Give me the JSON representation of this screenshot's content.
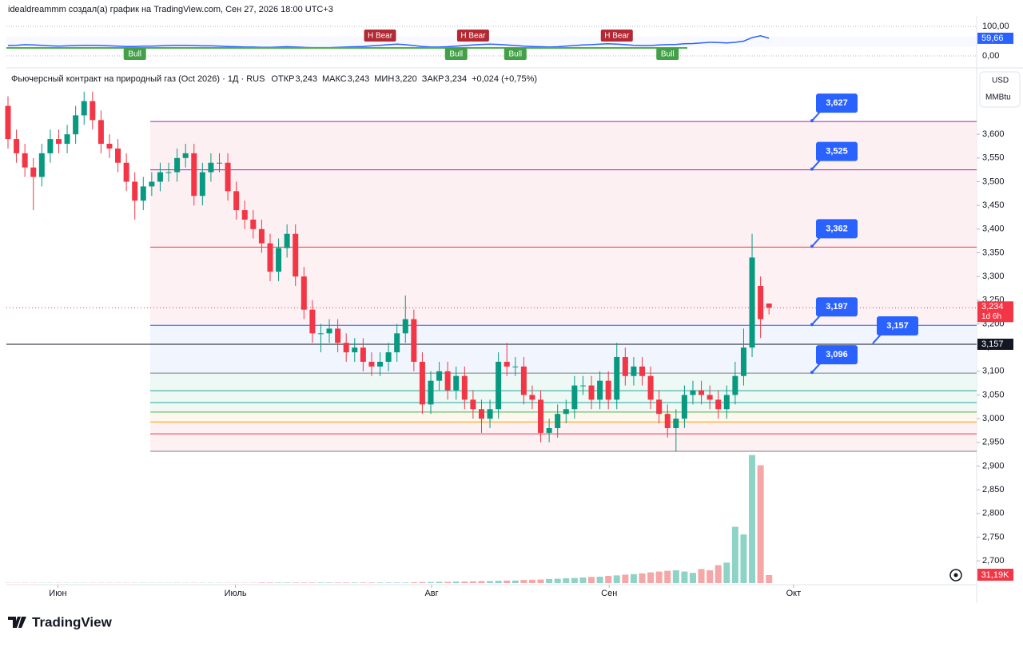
{
  "header": {
    "author": "idealdreammm создал(а) график на TradingView.com, Сен 27, 2026 18:00 UTC+3",
    "logo": "TradingView"
  },
  "chart_data": {
    "type": "candlestick",
    "title": "Фьючерсный контракт на природный газ (Oct 2026) · 1Д · RUS",
    "ohlc_legend": [
      {
        "name": "ОТКР",
        "label": "3,243"
      },
      {
        "name": "МАКС",
        "label": "3,243"
      },
      {
        "name": "МИН",
        "label": "3,220"
      },
      {
        "name": "ЗАКР",
        "label": "3,234"
      }
    ],
    "change": "+0,024 (+0,75%)",
    "units": [
      "USD",
      "MMBtu"
    ],
    "up_color": "#089981",
    "down_color": "#f23645",
    "open": [
      3.66,
      3.59,
      3.56,
      3.53,
      3.51,
      3.56,
      3.59,
      3.58,
      3.6,
      3.64,
      3.67,
      3.63,
      3.58,
      3.57,
      3.54,
      3.5,
      3.46,
      3.49,
      3.5,
      3.52,
      3.52,
      3.55,
      3.56,
      3.47,
      3.52,
      3.54,
      3.54,
      3.48,
      3.44,
      3.42,
      3.4,
      3.37,
      3.31,
      3.36,
      3.39,
      3.3,
      3.23,
      3.18,
      3.18,
      3.19,
      3.16,
      3.14,
      3.15,
      3.12,
      3.11,
      3.12,
      3.14,
      3.18,
      3.21,
      3.12,
      3.03,
      3.08,
      3.1,
      3.06,
      3.09,
      3.04,
      3.02,
      3.0,
      3.02,
      3.12,
      3.11,
      3.11,
      3.05,
      3.04,
      2.97,
      2.98,
      3.01,
      3.02,
      3.07,
      3.07,
      3.04,
      3.08,
      3.04,
      3.13,
      3.09,
      3.11,
      3.09,
      3.04,
      3.01,
      2.98,
      3.0,
      3.05,
      3.06,
      3.05,
      3.04,
      3.02,
      3.05,
      3.09,
      3.15,
      3.28,
      3.243
    ],
    "high": [
      3.68,
      3.61,
      3.58,
      3.55,
      3.58,
      3.61,
      3.61,
      3.62,
      3.66,
      3.69,
      3.69,
      3.65,
      3.6,
      3.59,
      3.56,
      3.52,
      3.51,
      3.52,
      3.54,
      3.54,
      3.57,
      3.58,
      3.58,
      3.54,
      3.56,
      3.56,
      3.56,
      3.5,
      3.46,
      3.44,
      3.42,
      3.39,
      3.38,
      3.41,
      3.41,
      3.32,
      3.25,
      3.2,
      3.21,
      3.21,
      3.18,
      3.17,
      3.17,
      3.14,
      3.14,
      3.16,
      3.2,
      3.26,
      3.23,
      3.14,
      3.1,
      3.12,
      3.12,
      3.11,
      3.11,
      3.06,
      3.04,
      3.04,
      3.14,
      3.16,
      3.13,
      3.13,
      3.07,
      3.06,
      3.0,
      3.03,
      3.04,
      3.09,
      3.09,
      3.09,
      3.1,
      3.1,
      3.16,
      3.15,
      3.13,
      3.13,
      3.11,
      3.06,
      3.03,
      3.02,
      3.07,
      3.08,
      3.08,
      3.07,
      3.06,
      3.07,
      3.12,
      3.19,
      3.39,
      3.3,
      3.243
    ],
    "low": [
      3.57,
      3.54,
      3.51,
      3.44,
      3.49,
      3.54,
      3.56,
      3.56,
      3.58,
      3.62,
      3.61,
      3.56,
      3.55,
      3.52,
      3.48,
      3.42,
      3.44,
      3.47,
      3.48,
      3.5,
      3.5,
      3.53,
      3.45,
      3.45,
      3.5,
      3.52,
      3.46,
      3.42,
      3.4,
      3.38,
      3.35,
      3.29,
      3.29,
      3.34,
      3.28,
      3.21,
      3.16,
      3.14,
      3.16,
      3.14,
      3.12,
      3.12,
      3.1,
      3.09,
      3.09,
      3.1,
      3.12,
      3.16,
      3.1,
      3.01,
      3.01,
      3.06,
      3.04,
      3.04,
      3.02,
      3.0,
      2.97,
      2.98,
      3.0,
      3.09,
      3.09,
      3.03,
      3.02,
      2.95,
      2.95,
      2.96,
      2.99,
      3.0,
      3.05,
      3.02,
      3.02,
      3.02,
      3.02,
      3.07,
      3.07,
      3.07,
      3.02,
      2.99,
      2.96,
      2.93,
      2.98,
      3.03,
      3.03,
      3.02,
      3.0,
      3.0,
      3.03,
      3.07,
      3.13,
      3.17,
      3.22
    ],
    "close": [
      3.59,
      3.56,
      3.53,
      3.51,
      3.56,
      3.59,
      3.58,
      3.6,
      3.64,
      3.67,
      3.63,
      3.58,
      3.57,
      3.54,
      3.5,
      3.46,
      3.49,
      3.5,
      3.52,
      3.52,
      3.55,
      3.56,
      3.47,
      3.52,
      3.54,
      3.54,
      3.48,
      3.44,
      3.42,
      3.4,
      3.37,
      3.31,
      3.36,
      3.39,
      3.3,
      3.23,
      3.18,
      3.18,
      3.19,
      3.16,
      3.14,
      3.15,
      3.12,
      3.11,
      3.12,
      3.14,
      3.18,
      3.21,
      3.12,
      3.03,
      3.08,
      3.1,
      3.06,
      3.09,
      3.04,
      3.02,
      3.0,
      3.02,
      3.12,
      3.11,
      3.11,
      3.05,
      3.04,
      2.97,
      2.98,
      3.01,
      3.02,
      3.07,
      3.07,
      3.04,
      3.08,
      3.04,
      3.13,
      3.09,
      3.11,
      3.09,
      3.04,
      3.01,
      2.98,
      3.0,
      3.05,
      3.06,
      3.05,
      3.04,
      3.02,
      3.05,
      3.09,
      3.15,
      3.34,
      3.21,
      3.234
    ],
    "last_price": {
      "label": "3,234",
      "countdown": "1d 6h"
    },
    "volume": {
      "values": [
        1000,
        1000,
        1000,
        1000,
        1000,
        1000,
        1000,
        1000,
        1000,
        1000,
        1000,
        1000,
        1000,
        1000,
        1000,
        1000,
        1000,
        1000,
        1000,
        1000,
        1000,
        1000,
        1000,
        1000,
        1000,
        1000,
        1000,
        1000,
        1000,
        1000,
        2000,
        2000,
        2000,
        2000,
        2000,
        2000,
        2000,
        2000,
        2000,
        2000,
        2000,
        2000,
        2000,
        2000,
        2000,
        2000,
        2000,
        2000,
        3000,
        4000,
        4000,
        5000,
        5000,
        6000,
        6000,
        7000,
        8000,
        8000,
        9000,
        10000,
        10000,
        12000,
        13000,
        14000,
        16000,
        17000,
        19000,
        20000,
        22000,
        24000,
        25000,
        28000,
        30000,
        33000,
        35000,
        38000,
        42000,
        45000,
        48000,
        50000,
        45000,
        40000,
        55000,
        50000,
        70000,
        80000,
        220000,
        190000,
        500000,
        460000,
        31190
      ],
      "value_labels": [
        null,
        null,
        null,
        null,
        null,
        null,
        null,
        null,
        null,
        null,
        null,
        null,
        null,
        null,
        null,
        null,
        null,
        null,
        null,
        null,
        null,
        null,
        null,
        null,
        null,
        null,
        null,
        null,
        null,
        null,
        null,
        null,
        null,
        null,
        null,
        null,
        null,
        null,
        null,
        null,
        null,
        null,
        null,
        null,
        null,
        null,
        null,
        null,
        null,
        null,
        null,
        null,
        null,
        null,
        null,
        null,
        null,
        null,
        null,
        null,
        null,
        null,
        null,
        null,
        null,
        null,
        null,
        null,
        null,
        null,
        null,
        null,
        null,
        null,
        null,
        null,
        null,
        null,
        null,
        null,
        null,
        null,
        null,
        null,
        null,
        null,
        null,
        null,
        null,
        null,
        "31,19K"
      ],
      "lim": [
        0,
        1934000
      ],
      "up_color": "#8fd3c6",
      "down_color": "#f5a6a6"
    },
    "ylim": [
      2.653,
      3.698
    ],
    "yticks": [
      {
        "value": 2.7,
        "label": "2,700"
      },
      {
        "value": 2.75,
        "label": "2,750"
      },
      {
        "value": 2.8,
        "label": "2,800"
      },
      {
        "value": 2.85,
        "label": "2,850"
      },
      {
        "value": 2.9,
        "label": "2,900"
      },
      {
        "value": 2.95,
        "label": "2,950"
      },
      {
        "value": 3.0,
        "label": "3,000"
      },
      {
        "value": 3.05,
        "label": "3,050"
      },
      {
        "value": 3.1,
        "label": "3,100"
      },
      {
        "value": 3.15,
        "label": "3,150"
      },
      {
        "value": 3.2,
        "label": "3,200"
      },
      {
        "value": 3.25,
        "label": "3,250"
      },
      {
        "value": 3.3,
        "label": "3,300"
      },
      {
        "value": 3.35,
        "label": "3,350"
      },
      {
        "value": 3.4,
        "label": "3,400"
      },
      {
        "value": 3.45,
        "label": "3,450"
      },
      {
        "value": 3.5,
        "label": "3,500"
      },
      {
        "value": 3.55,
        "label": "3,550"
      },
      {
        "value": 3.6,
        "label": "3,600"
      }
    ],
    "xticks": [
      {
        "value": 5.9,
        "label": "Июн"
      },
      {
        "value": 26.9,
        "label": "Июль"
      },
      {
        "value": 50.1,
        "label": "Авг"
      },
      {
        "value": 71.1,
        "label": "Сен"
      },
      {
        "value": 92.9,
        "label": "Окт"
      }
    ],
    "levels": [
      {
        "value": 3.627,
        "label": "3,627",
        "color": "#9c27b0",
        "fill": "#fdecef"
      },
      {
        "value": 3.525,
        "label": "3,525",
        "color": "#9c27b0",
        "fill": "#fdecef"
      },
      {
        "value": 3.362,
        "label": "3,362",
        "color": "#f23645",
        "fill": "#fdeef0"
      },
      {
        "value": 3.197,
        "label": "3,197",
        "color": "#2962ff",
        "fill": "#edf2fd"
      },
      {
        "value": 3.096,
        "label": "3,096",
        "color": "#787b86",
        "fill": "#eaf6f3"
      },
      {
        "value": 3.059,
        "color": "#26a69a",
        "fill": "#eaf6f3"
      },
      {
        "value": 3.034,
        "color": "#26a69a",
        "fill": "#eef7f2"
      },
      {
        "value": 3.014,
        "color": "#4caf50",
        "fill": "#fbf6e8"
      },
      {
        "value": 2.993,
        "color": "#ff9800",
        "fill": "#fdeef0"
      },
      {
        "value": 2.968,
        "color": "#f23645",
        "fill": "#fdeef0"
      },
      {
        "value": 2.931,
        "color": "#787b86"
      }
    ],
    "current_line": {
      "value": 3.157,
      "label": "3,157",
      "color": "#131722"
    },
    "oscillator": {
      "color": "#2962ff",
      "ylim": [
        0,
        100
      ],
      "ticks": [
        {
          "value": 100,
          "label": "100,00"
        },
        {
          "value": 0,
          "label": "0,00"
        }
      ],
      "values": [
        35,
        36,
        38,
        37,
        36,
        34,
        33,
        34,
        35,
        36,
        36,
        35,
        34,
        33,
        32,
        32,
        33,
        33,
        34,
        35,
        36,
        36,
        35,
        34,
        34,
        33,
        32,
        31,
        30,
        30,
        29,
        29,
        30,
        31,
        30,
        29,
        28,
        28,
        28,
        29,
        30,
        31,
        32,
        34,
        36,
        38,
        40,
        38,
        35,
        32,
        30,
        30,
        31,
        33,
        35,
        37,
        39,
        40,
        39,
        37,
        35,
        33,
        32,
        31,
        30,
        31,
        33,
        35,
        37,
        38,
        40,
        41,
        40,
        38,
        36,
        35,
        35,
        37,
        38,
        39,
        41,
        42,
        44,
        46,
        45,
        44,
        46,
        50,
        62,
        68,
        59.66
      ],
      "value_labels": [
        null,
        null,
        null,
        null,
        null,
        null,
        null,
        null,
        null,
        null,
        null,
        null,
        null,
        null,
        null,
        null,
        null,
        null,
        null,
        null,
        null,
        null,
        null,
        null,
        null,
        null,
        null,
        null,
        null,
        null,
        null,
        null,
        null,
        null,
        null,
        null,
        null,
        null,
        null,
        null,
        null,
        null,
        null,
        null,
        null,
        null,
        null,
        null,
        null,
        null,
        null,
        null,
        null,
        null,
        null,
        null,
        null,
        null,
        null,
        null,
        null,
        null,
        null,
        null,
        null,
        null,
        null,
        null,
        null,
        null,
        null,
        null,
        null,
        null,
        null,
        null,
        null,
        null,
        null,
        null,
        null,
        null,
        null,
        null,
        null,
        null,
        null,
        null,
        null,
        null,
        "59,66"
      ],
      "signals": [
        {
          "label": "Bull",
          "index": 15,
          "kind": "bull"
        },
        {
          "label": "H Bear",
          "index": 44,
          "kind": "bear"
        },
        {
          "label": "Bull",
          "index": 53,
          "kind": "bull"
        },
        {
          "label": "H Bear",
          "index": 55,
          "kind": "bear"
        },
        {
          "label": "Bull",
          "index": 60,
          "kind": "bull"
        },
        {
          "label": "H Bear",
          "index": 72,
          "kind": "bear"
        },
        {
          "label": "Bull",
          "index": 78,
          "kind": "bull"
        }
      ]
    }
  }
}
